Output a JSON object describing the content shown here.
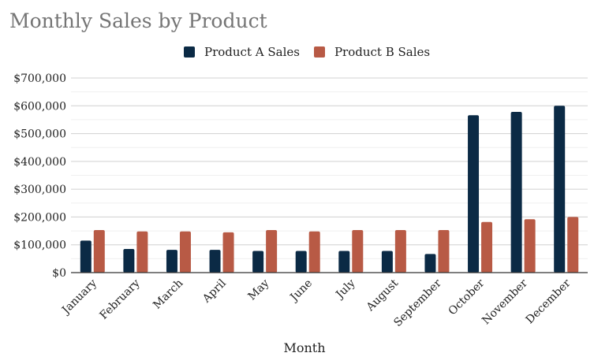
{
  "chart_data": {
    "type": "bar",
    "title": "Monthly Sales by Product",
    "xlabel": "Month",
    "ylabel": "",
    "ylim": [
      0,
      700000
    ],
    "yticks": [
      0,
      100000,
      200000,
      300000,
      400000,
      500000,
      600000,
      700000
    ],
    "ytick_labels": [
      "$0",
      "$100,000",
      "$200,000",
      "$300,000",
      "$400,000",
      "$500,000",
      "$600,000",
      "$700,000"
    ],
    "categories": [
      "January",
      "February",
      "March",
      "April",
      "May",
      "June",
      "July",
      "August",
      "September",
      "October",
      "November",
      "December"
    ],
    "series": [
      {
        "name": "Product A Sales",
        "color": "#0b2a45",
        "values": [
          115000,
          85000,
          82000,
          82000,
          78000,
          78000,
          78000,
          78000,
          67000,
          566000,
          578000,
          600000
        ]
      },
      {
        "name": "Product B Sales",
        "color": "#b85a45",
        "values": [
          153000,
          148000,
          148000,
          145000,
          153000,
          148000,
          153000,
          153000,
          153000,
          182000,
          192000,
          200000
        ]
      }
    ],
    "legend_position": "top-center",
    "grid": true
  }
}
